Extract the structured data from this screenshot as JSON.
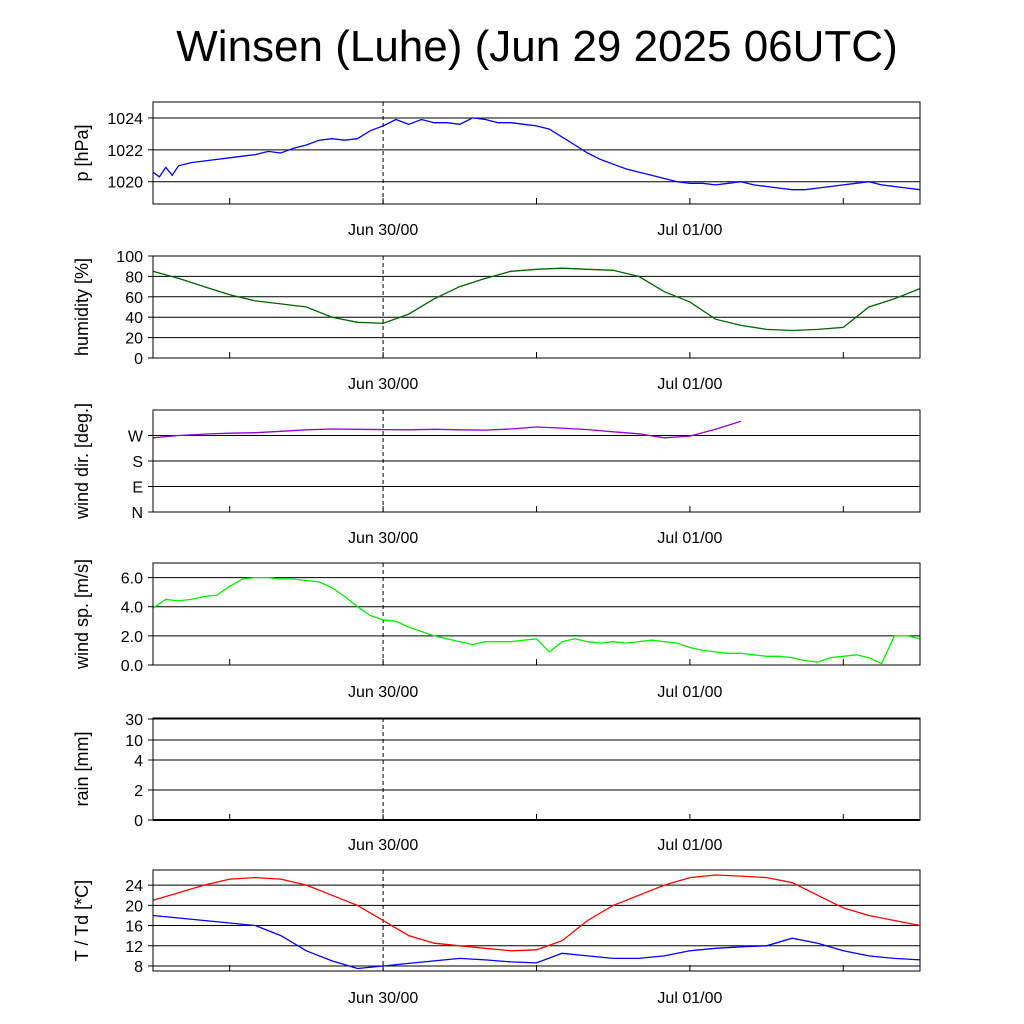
{
  "title": "Winsen (Luhe) (Jun 29 2025 06UTC)",
  "x_ticks": [
    "Jun 30/00",
    "Jul 01/00"
  ],
  "colors": {
    "pressure": "#0000ff",
    "humidity": "#006400",
    "wind_dir": "#9400d3",
    "wind_speed": "#00ee00",
    "temperature": "#ff0000",
    "dewpoint": "#0000ff"
  },
  "chart_data": [
    {
      "type": "line",
      "id": "pressure",
      "ylabel": "p [hPa]",
      "xlim_hours": [
        -18,
        42
      ],
      "ylim": [
        1018.6,
        1025
      ],
      "yticks": [
        1020,
        1022,
        1024
      ],
      "ytick_labels": [
        "1020",
        "1022",
        "1024"
      ],
      "series": [
        {
          "x": [
            -18,
            -17.5,
            -17,
            -16.5,
            -16,
            -15,
            -14,
            -13,
            -12,
            -11,
            -10,
            -9,
            -8,
            -7,
            -6,
            -5,
            -4,
            -3,
            -2,
            -1,
            0,
            1,
            2,
            3,
            4,
            5,
            6,
            7,
            8,
            9,
            10,
            11,
            12,
            13,
            14,
            15,
            16,
            17,
            18,
            19,
            20,
            21,
            22,
            23,
            24,
            25,
            26,
            27,
            28,
            29,
            30,
            31,
            32,
            33,
            34,
            35,
            36,
            37,
            38,
            39,
            40,
            41,
            42
          ],
          "y": [
            1020.6,
            1020.3,
            1020.9,
            1020.4,
            1021.0,
            1021.2,
            1021.3,
            1021.4,
            1021.5,
            1021.6,
            1021.7,
            1021.9,
            1021.8,
            1022.1,
            1022.3,
            1022.6,
            1022.7,
            1022.6,
            1022.7,
            1023.2,
            1023.5,
            1023.9,
            1023.6,
            1023.9,
            1023.7,
            1023.7,
            1023.6,
            1024.0,
            1023.9,
            1023.7,
            1023.7,
            1023.6,
            1023.5,
            1023.3,
            1022.8,
            1022.3,
            1021.8,
            1021.4,
            1021.1,
            1020.8,
            1020.6,
            1020.4,
            1020.2,
            1020.0,
            1019.9,
            1019.9,
            1019.8,
            1019.9,
            1020.0,
            1019.8,
            1019.7,
            1019.6,
            1019.5,
            1019.5,
            1019.6,
            1019.7,
            1019.8,
            1019.9,
            1020.0,
            1019.8,
            1019.7,
            1019.6,
            1019.5
          ]
        }
      ]
    },
    {
      "type": "line",
      "id": "humidity",
      "ylabel": "humidity [%]",
      "xlim_hours": [
        -18,
        42
      ],
      "ylim": [
        0,
        100
      ],
      "yticks": [
        0,
        20,
        40,
        60,
        80,
        100
      ],
      "ytick_labels": [
        "0",
        "20",
        "40",
        "60",
        "80",
        "100"
      ],
      "series": [
        {
          "x": [
            -18,
            -16,
            -14,
            -12,
            -10,
            -8,
            -6,
            -4,
            -2,
            0,
            2,
            4,
            6,
            8,
            10,
            12,
            14,
            16,
            18,
            20,
            22,
            24,
            26,
            28,
            30,
            32,
            34,
            36,
            38,
            40,
            42
          ],
          "y": [
            85,
            78,
            70,
            62,
            56,
            53,
            50,
            40,
            35,
            34,
            43,
            58,
            70,
            78,
            85,
            87,
            88,
            87,
            86,
            80,
            65,
            55,
            38,
            32,
            28,
            27,
            28,
            30,
            50,
            58,
            68
          ]
        }
      ]
    },
    {
      "type": "line",
      "id": "wind_dir",
      "ylabel": "wind dir. [deg.]",
      "xlim_hours": [
        -18,
        42
      ],
      "ylim": [
        0,
        360
      ],
      "yticks": [
        0,
        90,
        180,
        270
      ],
      "ytick_labels": [
        "N",
        "E",
        "S",
        "W"
      ],
      "series": [
        {
          "x": [
            -18,
            -16,
            -14,
            -12,
            -10,
            -8,
            -6,
            -4,
            -2,
            0,
            2,
            4,
            6,
            8,
            10,
            12,
            14,
            16,
            18,
            20,
            22,
            24,
            26,
            28
          ],
          "y": [
            262,
            270,
            275,
            278,
            280,
            285,
            290,
            293,
            292,
            291,
            290,
            292,
            290,
            289,
            293,
            300,
            296,
            291,
            283,
            276,
            262,
            268,
            292,
            320
          ]
        }
      ]
    },
    {
      "type": "line",
      "id": "wind_speed",
      "ylabel": "wind sp. [m/s]",
      "xlim_hours": [
        -18,
        42
      ],
      "ylim": [
        0,
        7
      ],
      "yticks": [
        0,
        2,
        4,
        6
      ],
      "ytick_labels": [
        "0.0",
        "2.0",
        "4.0",
        "6.0"
      ],
      "series": [
        {
          "x": [
            -18,
            -17,
            -16,
            -15,
            -14,
            -13,
            -12,
            -11,
            -10,
            -9,
            -8,
            -7,
            -6,
            -5,
            -4,
            -3,
            -2,
            -1,
            0,
            1,
            2,
            3,
            4,
            5,
            6,
            7,
            8,
            9,
            10,
            11,
            12,
            13,
            14,
            15,
            16,
            17,
            18,
            19,
            20,
            21,
            22,
            23,
            24,
            25,
            26,
            27,
            28,
            29,
            30,
            31,
            32,
            33,
            34,
            35,
            36,
            37,
            38,
            39,
            40,
            41,
            42
          ],
          "y": [
            3.9,
            4.5,
            4.4,
            4.5,
            4.7,
            4.8,
            5.4,
            5.9,
            6.0,
            6.0,
            5.9,
            5.9,
            5.8,
            5.7,
            5.3,
            4.7,
            4.0,
            3.4,
            3.1,
            3.0,
            2.6,
            2.3,
            2.0,
            1.8,
            1.6,
            1.4,
            1.6,
            1.6,
            1.6,
            1.7,
            1.8,
            0.9,
            1.6,
            1.8,
            1.6,
            1.5,
            1.6,
            1.5,
            1.6,
            1.7,
            1.6,
            1.5,
            1.2,
            1.0,
            0.9,
            0.8,
            0.8,
            0.7,
            0.6,
            0.6,
            0.5,
            0.3,
            0.2,
            0.5,
            0.6,
            0.7,
            0.5,
            0.1,
            2.0,
            2.0,
            1.8
          ]
        }
      ]
    },
    {
      "type": "line",
      "id": "rain",
      "ylabel": "rain [mm]",
      "xlim_hours": [
        -18,
        42
      ],
      "yticks": [
        0,
        2,
        4,
        10,
        30
      ],
      "ytick_labels": [
        "0",
        "2",
        "4",
        "10",
        "30"
      ],
      "series": [
        {
          "x": [
            -18,
            42
          ],
          "y": [
            0,
            0
          ]
        }
      ]
    },
    {
      "type": "line",
      "id": "temperature",
      "ylabel": "T / Td [*C]",
      "xlim_hours": [
        -18,
        42
      ],
      "ylim": [
        7,
        27
      ],
      "yticks": [
        8,
        12,
        16,
        20,
        24
      ],
      "ytick_labels": [
        "8",
        "12",
        "16",
        "20",
        "24"
      ],
      "series": [
        {
          "x": [
            -18,
            -16,
            -14,
            -12,
            -10,
            -8,
            -6,
            -4,
            -2,
            0,
            2,
            4,
            6,
            8,
            10,
            12,
            14,
            16,
            18,
            20,
            22,
            24,
            26,
            28,
            30,
            32,
            34,
            36,
            38,
            40,
            42
          ],
          "y": [
            21,
            22.5,
            24,
            25.2,
            25.5,
            25.2,
            24,
            22,
            20,
            17,
            14,
            12.5,
            12,
            11.5,
            11,
            11.2,
            13,
            17,
            20,
            22,
            24,
            25.5,
            26,
            25.8,
            25.5,
            24.5,
            22,
            19.5,
            18,
            17,
            16
          ]
        },
        {
          "x": [
            -18,
            -16,
            -14,
            -12,
            -10,
            -8,
            -6,
            -4,
            -2,
            0,
            2,
            4,
            6,
            8,
            10,
            12,
            14,
            16,
            18,
            20,
            22,
            24,
            26,
            28,
            30,
            32,
            34,
            36,
            38,
            40,
            42
          ],
          "y": [
            18,
            17.5,
            17,
            16.5,
            16,
            14,
            11,
            9,
            7.5,
            8,
            8.5,
            9,
            9.5,
            9.2,
            8.8,
            8.6,
            10.5,
            10,
            9.5,
            9.5,
            10,
            11,
            11.5,
            11.8,
            12,
            13.5,
            12.5,
            11,
            10,
            9.5,
            9.2
          ]
        }
      ]
    }
  ]
}
